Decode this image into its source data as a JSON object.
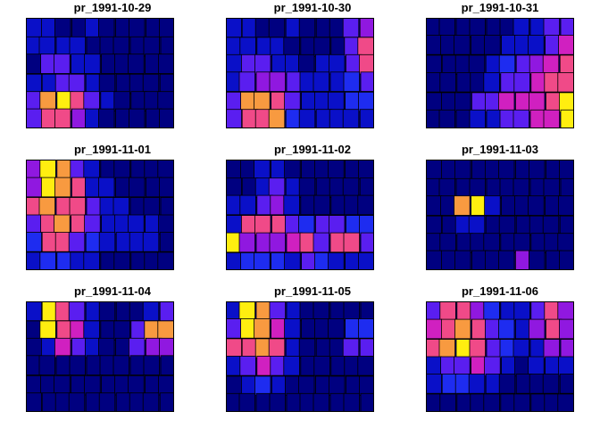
{
  "figure": {
    "description_free": true,
    "panels": [
      {
        "title": "pr_1991-10-29"
      },
      {
        "title": "pr_1991-10-30"
      },
      {
        "title": "pr_1991-10-31"
      },
      {
        "title": "pr_1991-11-01"
      },
      {
        "title": "pr_1991-11-02"
      },
      {
        "title": "pr_1991-11-03"
      },
      {
        "title": "pr_1991-11-04"
      },
      {
        "title": "pr_1991-11-05"
      },
      {
        "title": "pr_1991-11-06"
      }
    ]
  },
  "palette": {
    "background": "#000080",
    "levels": [
      "#000080",
      "#0a10c8",
      "#1e2cf0",
      "#5a1ef0",
      "#9018e0",
      "#d020c0",
      "#f04a88",
      "#f89a40",
      "#ffee10"
    ],
    "border": "#000000"
  },
  "chart_data": {
    "type": "heatmap",
    "variable": "pr",
    "dates": [
      "1991-10-29",
      "1991-10-30",
      "1991-10-31",
      "1991-11-01",
      "1991-11-02",
      "1991-11-03",
      "1991-11-04",
      "1991-11-05",
      "1991-11-06"
    ],
    "grid_note": "relative precipitation level (0 = dark navy, 8 = yellow) per county-like cell, rows north to south",
    "levels": [
      [
        [
          1,
          1,
          0,
          0,
          1,
          0,
          0,
          0,
          0,
          0
        ],
        [
          1,
          1,
          1,
          1,
          0,
          0,
          0,
          0,
          0,
          0
        ],
        [
          0,
          3,
          3,
          1,
          1,
          0,
          0,
          0,
          0,
          0
        ],
        [
          1,
          1,
          3,
          3,
          1,
          0,
          0,
          0,
          0,
          0
        ],
        [
          3,
          7,
          8,
          6,
          3,
          1,
          0,
          0,
          0,
          0
        ],
        [
          3,
          6,
          6,
          4,
          1,
          0,
          0,
          0,
          0,
          0
        ]
      ],
      [
        [
          1,
          1,
          0,
          0,
          1,
          0,
          0,
          0,
          3,
          4
        ],
        [
          1,
          1,
          1,
          1,
          0,
          0,
          0,
          0,
          3,
          6
        ],
        [
          1,
          3,
          3,
          1,
          1,
          0,
          1,
          1,
          3,
          6
        ],
        [
          1,
          3,
          4,
          4,
          3,
          1,
          1,
          1,
          2,
          3
        ],
        [
          3,
          7,
          7,
          6,
          3,
          1,
          1,
          1,
          2,
          2
        ],
        [
          3,
          6,
          6,
          7,
          2,
          1,
          1,
          1,
          1,
          1
        ]
      ],
      [
        [
          0,
          0,
          0,
          0,
          0,
          0,
          1,
          1,
          3,
          3
        ],
        [
          0,
          0,
          0,
          0,
          0,
          1,
          1,
          1,
          3,
          5
        ],
        [
          0,
          0,
          0,
          0,
          1,
          2,
          3,
          4,
          5,
          6
        ],
        [
          0,
          0,
          0,
          0,
          1,
          3,
          3,
          5,
          6,
          6
        ],
        [
          0,
          0,
          0,
          3,
          3,
          5,
          5,
          5,
          6,
          8
        ],
        [
          0,
          0,
          0,
          1,
          1,
          3,
          3,
          5,
          5,
          8
        ]
      ],
      [
        [
          4,
          8,
          7,
          3,
          1,
          0,
          0,
          0,
          0,
          0
        ],
        [
          4,
          8,
          7,
          6,
          1,
          1,
          0,
          0,
          0,
          0
        ],
        [
          6,
          7,
          6,
          6,
          3,
          1,
          1,
          0,
          0,
          0
        ],
        [
          3,
          6,
          7,
          6,
          3,
          1,
          1,
          1,
          1,
          0
        ],
        [
          2,
          6,
          6,
          3,
          2,
          1,
          1,
          1,
          1,
          0
        ],
        [
          1,
          2,
          2,
          1,
          1,
          0,
          0,
          0,
          0,
          0
        ]
      ],
      [
        [
          0,
          0,
          1,
          1,
          0,
          0,
          0,
          0,
          0,
          0
        ],
        [
          0,
          0,
          1,
          3,
          1,
          0,
          0,
          0,
          0,
          0
        ],
        [
          1,
          1,
          3,
          4,
          1,
          0,
          0,
          0,
          0,
          0
        ],
        [
          1,
          6,
          6,
          6,
          3,
          2,
          3,
          3,
          2,
          2
        ],
        [
          8,
          4,
          4,
          4,
          5,
          6,
          3,
          6,
          6,
          3
        ],
        [
          1,
          2,
          2,
          2,
          1,
          3,
          2,
          1,
          1,
          1
        ]
      ],
      [
        [
          0,
          0,
          0,
          0,
          0,
          0,
          0,
          0,
          0,
          0
        ],
        [
          0,
          0,
          0,
          0,
          0,
          0,
          0,
          0,
          0,
          0
        ],
        [
          0,
          0,
          7,
          8,
          1,
          0,
          0,
          0,
          0,
          0
        ],
        [
          0,
          0,
          1,
          1,
          0,
          0,
          0,
          0,
          0,
          0
        ],
        [
          0,
          0,
          0,
          0,
          0,
          0,
          0,
          0,
          0,
          0
        ],
        [
          0,
          0,
          0,
          0,
          0,
          0,
          4,
          0,
          0,
          0
        ]
      ],
      [
        [
          1,
          8,
          6,
          3,
          1,
          0,
          0,
          0,
          1,
          3
        ],
        [
          0,
          8,
          6,
          5,
          1,
          0,
          0,
          3,
          7,
          7
        ],
        [
          0,
          1,
          5,
          3,
          1,
          0,
          0,
          3,
          4,
          4
        ],
        [
          0,
          0,
          0,
          0,
          0,
          0,
          0,
          0,
          0,
          0
        ],
        [
          0,
          0,
          0,
          0,
          0,
          0,
          0,
          0,
          0,
          0
        ],
        [
          0,
          0,
          0,
          0,
          0,
          0,
          0,
          0,
          0,
          0
        ]
      ],
      [
        [
          1,
          8,
          7,
          3,
          1,
          0,
          0,
          0,
          0,
          0
        ],
        [
          3,
          8,
          7,
          5,
          1,
          0,
          0,
          0,
          2,
          2
        ],
        [
          6,
          6,
          7,
          6,
          1,
          0,
          0,
          0,
          3,
          3
        ],
        [
          1,
          3,
          5,
          3,
          1,
          0,
          0,
          0,
          0,
          0
        ],
        [
          0,
          1,
          2,
          1,
          0,
          0,
          0,
          0,
          0,
          0
        ],
        [
          0,
          0,
          0,
          0,
          0,
          0,
          0,
          0,
          0,
          0
        ]
      ],
      [
        [
          3,
          6,
          6,
          4,
          2,
          1,
          1,
          3,
          6,
          4
        ],
        [
          5,
          6,
          7,
          6,
          3,
          2,
          1,
          4,
          6,
          4
        ],
        [
          6,
          7,
          8,
          6,
          3,
          2,
          1,
          1,
          4,
          4
        ],
        [
          1,
          3,
          3,
          5,
          3,
          1,
          0,
          1,
          1,
          1
        ],
        [
          1,
          2,
          2,
          1,
          1,
          0,
          0,
          0,
          0,
          0
        ],
        [
          0,
          0,
          0,
          0,
          0,
          0,
          0,
          0,
          0,
          0
        ]
      ]
    ]
  }
}
